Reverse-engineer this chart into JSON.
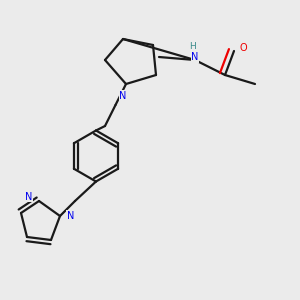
{
  "bg_color": "#ebebeb",
  "bond_color": "#1a1a1a",
  "N_color": "#0000ee",
  "O_color": "#ee0000",
  "H_color": "#3a8a8a",
  "line_width": 1.6,
  "figsize": [
    3.0,
    3.0
  ],
  "dpi": 100,
  "xlim": [
    0,
    10
  ],
  "ylim": [
    0,
    10
  ]
}
